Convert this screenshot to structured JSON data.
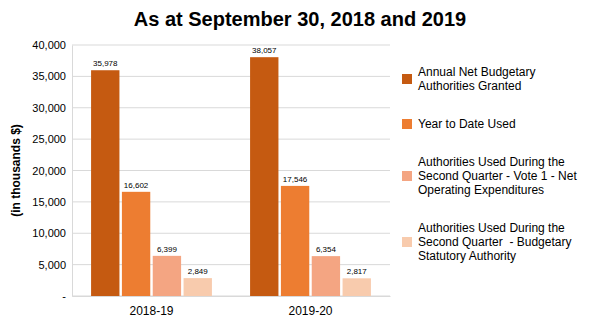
{
  "chart_data": {
    "type": "bar",
    "title": "As at September 30, 2018 and 2019",
    "y_label": "(in thousands $)",
    "categories": [
      "2018-19",
      "2019-20"
    ],
    "series": [
      {
        "name": "Annual Net Budgetary Authorities Granted",
        "color": "#c55a11",
        "values": [
          35978,
          38057
        ],
        "value_labels": [
          "35,978",
          "38,057"
        ]
      },
      {
        "name": "Year to Date Used",
        "color": "#ed7d31",
        "values": [
          16602,
          17546
        ],
        "value_labels": [
          "16,602",
          "17,546"
        ]
      },
      {
        "name": "Authorities Used During the Second Quarter - Vote 1 - Net Operating Expenditures",
        "color": "#f4a582",
        "values": [
          6399,
          6354
        ],
        "value_labels": [
          "6,399",
          "6,354"
        ]
      },
      {
        "name": "Authorities Used During the Second Quarter  - Budgetary Statutory Authority",
        "color": "#f8cbad",
        "values": [
          2849,
          2817
        ],
        "value_labels": [
          "2,849",
          "2,817"
        ]
      }
    ],
    "ylim": [
      0,
      40000
    ],
    "yticks": [
      {
        "value": 0,
        "label": "-"
      },
      {
        "value": 5000,
        "label": "5,000"
      },
      {
        "value": 10000,
        "label": "10,000"
      },
      {
        "value": 15000,
        "label": "15,000"
      },
      {
        "value": 20000,
        "label": "20,000"
      },
      {
        "value": 25000,
        "label": "25,000"
      },
      {
        "value": 30000,
        "label": "30,000"
      },
      {
        "value": 35000,
        "label": "35,000"
      },
      {
        "value": 40000,
        "label": "40,000"
      }
    ],
    "grid": true,
    "data_labels": true,
    "legend": "right"
  }
}
